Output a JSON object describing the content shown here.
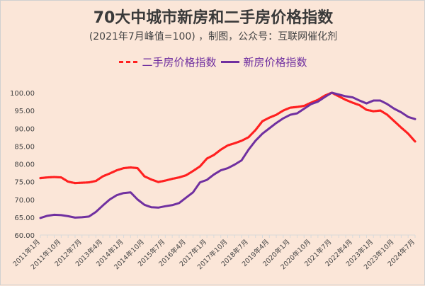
{
  "chart_data": {
    "type": "line",
    "title": "70大中城市新房和二手房价格指数",
    "subtitle": "(2021年7月峰值=100) ，制图，公众号：互联网催化剂",
    "x": [
      "2011-01",
      "2011-04",
      "2011-07",
      "2011-10",
      "2012-01",
      "2012-04",
      "2012-07",
      "2012-10",
      "2013-01",
      "2013-04",
      "2013-07",
      "2013-10",
      "2014-01",
      "2014-04",
      "2014-07",
      "2014-10",
      "2015-01",
      "2015-04",
      "2015-07",
      "2015-10",
      "2016-01",
      "2016-04",
      "2016-07",
      "2016-10",
      "2017-01",
      "2017-04",
      "2017-07",
      "2017-10",
      "2018-01",
      "2018-04",
      "2018-07",
      "2018-10",
      "2019-01",
      "2019-04",
      "2019-07",
      "2019-10",
      "2020-01",
      "2020-04",
      "2020-07",
      "2020-10",
      "2021-01",
      "2021-04",
      "2021-07",
      "2021-10",
      "2022-01",
      "2022-04",
      "2022-07",
      "2022-10",
      "2023-01",
      "2023-04",
      "2023-07",
      "2023-10",
      "2024-01",
      "2024-04",
      "2024-07"
    ],
    "x_tick_labels": [
      "2011年1月",
      "2011年10月",
      "2012年7月",
      "2013年4月",
      "2014年1月",
      "2014年10月",
      "2015年7月",
      "2016年4月",
      "2017年1月",
      "2017年10月",
      "2018年7月",
      "2019年4月",
      "2020年1月",
      "2020年10月",
      "2021年7月",
      "2022年4月",
      "2023年1月",
      "2023年10月",
      "2024年7月"
    ],
    "y_tick_labels": [
      "100.00",
      "95.00",
      "90.00",
      "85.00",
      "80.00",
      "75.00",
      "70.00",
      "65.00",
      "60.00"
    ],
    "ylim": [
      60,
      100
    ],
    "legend_position": "top",
    "grid": false,
    "series": [
      {
        "name": "二手房价格指数",
        "color": "#ff2020",
        "style": "dashed",
        "values": [
          76.0,
          76.2,
          76.3,
          76.2,
          75.0,
          74.6,
          74.7,
          74.8,
          75.2,
          76.5,
          77.3,
          78.2,
          78.8,
          79.0,
          78.8,
          76.5,
          75.6,
          74.9,
          75.3,
          75.8,
          76.2,
          76.8,
          78.0,
          79.3,
          81.5,
          82.5,
          84.0,
          85.2,
          85.8,
          86.5,
          87.5,
          89.5,
          92.0,
          93.0,
          93.8,
          95.0,
          95.8,
          96.0,
          96.3,
          97.2,
          98.0,
          99.2,
          100.0,
          99.0,
          98.0,
          97.2,
          96.5,
          95.2,
          94.8,
          95.0,
          93.8,
          92.0,
          90.2,
          88.5,
          86.3
        ]
      },
      {
        "name": "新房价格指数",
        "color": "#7030a0",
        "style": "solid",
        "values": [
          64.8,
          65.4,
          65.7,
          65.6,
          65.3,
          64.9,
          65.0,
          65.2,
          66.5,
          68.3,
          70.0,
          71.2,
          71.8,
          72.0,
          70.0,
          68.5,
          67.8,
          67.7,
          68.1,
          68.4,
          69.0,
          70.5,
          72.0,
          74.8,
          75.5,
          77.0,
          78.2,
          78.8,
          79.8,
          81.0,
          84.0,
          86.5,
          88.5,
          90.0,
          91.5,
          92.8,
          93.8,
          94.2,
          95.5,
          96.8,
          97.5,
          98.8,
          100.0,
          99.5,
          99.0,
          98.7,
          97.8,
          97.0,
          97.8,
          97.8,
          96.8,
          95.5,
          94.5,
          93.2,
          92.6
        ]
      }
    ]
  }
}
